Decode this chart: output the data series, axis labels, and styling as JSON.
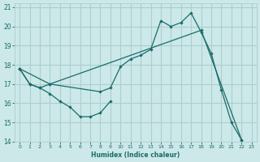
{
  "xlabel": "Humidex (Indice chaleur)",
  "xlim": [
    -0.5,
    23.5
  ],
  "ylim": [
    14,
    21.2
  ],
  "yticks": [
    14,
    15,
    16,
    17,
    18,
    19,
    20,
    21
  ],
  "xticks": [
    0,
    1,
    2,
    3,
    4,
    5,
    6,
    7,
    8,
    9,
    10,
    11,
    12,
    13,
    14,
    15,
    16,
    17,
    18,
    19,
    20,
    21,
    22,
    23
  ],
  "background_color": "#cce8e8",
  "grid_color": "#aacfcf",
  "line_color": "#1a6b6b",
  "line1_x": [
    0,
    1,
    2,
    3,
    4,
    5,
    6,
    7,
    8,
    9
  ],
  "line1_y": [
    17.8,
    17.0,
    16.8,
    16.5,
    16.1,
    15.8,
    15.3,
    15.3,
    15.5,
    16.1
  ],
  "line2_x": [
    0,
    1,
    2,
    3,
    8,
    9,
    10,
    11,
    12,
    13,
    14,
    15,
    16,
    17,
    18,
    19,
    20,
    21,
    22
  ],
  "line2_y": [
    17.8,
    17.0,
    16.8,
    17.0,
    16.6,
    16.8,
    17.9,
    18.3,
    18.5,
    18.8,
    20.3,
    20.0,
    20.2,
    20.7,
    19.7,
    18.6,
    16.7,
    15.0,
    14.1
  ],
  "line3_x": [
    0,
    3,
    18,
    22
  ],
  "line3_y": [
    17.8,
    17.0,
    19.8,
    14.1
  ]
}
